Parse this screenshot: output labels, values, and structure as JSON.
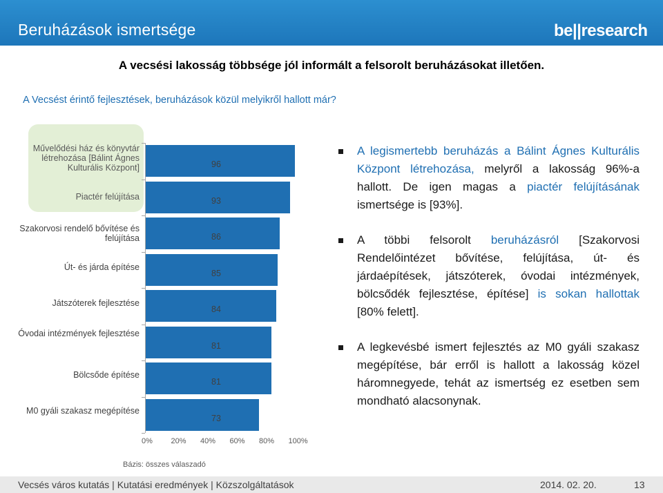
{
  "header": {
    "title": "Beruházások ismertsége",
    "logo": "be||research"
  },
  "headline": "A vecsési lakosság többsége jól informált a felsorolt beruházásokat illetően.",
  "question": "A Vecsést érintő fejlesztések, beruházások közül melyikről hallott már?",
  "chart_data": {
    "type": "bar",
    "orientation": "horizontal",
    "categories": [
      "Művelődési ház és könyvtár létrehozása [Bálint Ágnes Kulturális Központ]",
      "Piactér felújítása",
      "Szakorvosi rendelő bővítése és felújítása",
      "Út- és járda építése",
      "Játszóterek fejlesztése",
      "Óvodai intézmények fejlesztése",
      "Bölcsőde építése",
      "M0 gyáli szakasz megépítése"
    ],
    "values": [
      96,
      93,
      86,
      85,
      84,
      81,
      81,
      73
    ],
    "xlim": [
      0,
      100
    ],
    "xticks": [
      "0%",
      "20%",
      "40%",
      "60%",
      "80%",
      "100%"
    ],
    "color": "#1f6fb2",
    "highlight_color": "#e3efd6"
  },
  "basis": "Bázis: összes válaszadó",
  "bullets": [
    [
      {
        "t": "A legismertebb beruházás a Bálint Ágnes Kulturális Központ létrehozása,",
        "c": "blue"
      },
      {
        "t": " melyről a lakosság 96%-a hallott. De igen magas a ",
        "c": ""
      },
      {
        "t": "piactér felújításának",
        "c": "blue"
      },
      {
        "t": " ismertsége is [93%].",
        "c": ""
      }
    ],
    [
      {
        "t": "A többi felsorolt ",
        "c": ""
      },
      {
        "t": "beruházásról",
        "c": "blue"
      },
      {
        "t": " [Szakorvosi Rendelőintézet bővítése, felújítása, út- és járdaépítések, játszóterek, óvodai intézmények, bölcsődék fejlesztése, építése] ",
        "c": ""
      },
      {
        "t": "is sokan hallottak",
        "c": "blue"
      },
      {
        "t": " [80% felett].",
        "c": ""
      }
    ],
    [
      {
        "t": "A legkevésbé ismert fejlesztés az M0 gyáli szakasz megépítése, bár erről is hallott a lakosság közel háromnegyede, tehát az ismertség ez esetben sem mondható alacsonynak.",
        "c": ""
      }
    ]
  ],
  "footer": {
    "text": "Vecsés város kutatás | Kutatási eredmények | Közszolgáltatások",
    "date": "2014. 02. 20.",
    "page": "13"
  }
}
